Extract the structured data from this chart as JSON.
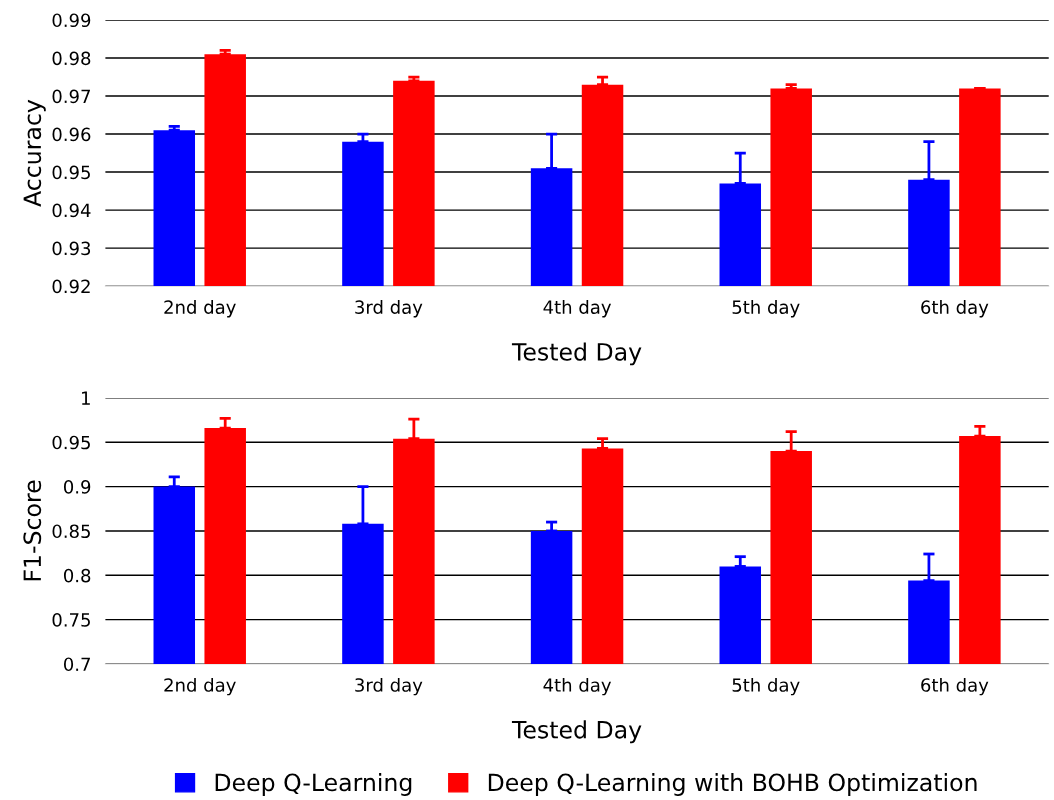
{
  "chart_data": [
    {
      "type": "bar",
      "categories": [
        "2nd day",
        "3rd day",
        "4th day",
        "5th day",
        "6th day"
      ],
      "xlabel": "Tested Day",
      "ylabel": "Accuracy",
      "ylim": [
        0.92,
        0.99
      ],
      "yticks": [
        0.92,
        0.93,
        0.94,
        0.95,
        0.96,
        0.97,
        0.98,
        0.99
      ],
      "grid": "y",
      "series": [
        {
          "color": "#0000ff",
          "values": [
            0.961,
            0.958,
            0.951,
            0.947,
            0.948
          ],
          "errors": [
            [
              0.961,
              0.962
            ],
            [
              0.958,
              0.96
            ],
            [
              0.951,
              0.96
            ],
            [
              0.947,
              0.955
            ],
            [
              0.948,
              0.958
            ]
          ]
        },
        {
          "color": "#ff0000",
          "values": [
            0.981,
            0.974,
            0.973,
            0.972,
            0.972
          ],
          "errors": [
            [
              0.981,
              0.982
            ],
            [
              0.974,
              0.975
            ],
            [
              0.973,
              0.975
            ],
            [
              0.972,
              0.973
            ],
            [
              0.972,
              0.972
            ]
          ]
        }
      ]
    },
    {
      "type": "bar",
      "categories": [
        "2nd day",
        "3rd day",
        "4th day",
        "5th day",
        "6th day"
      ],
      "xlabel": "Tested Day",
      "ylabel": "F1-Score",
      "ylim": [
        0.7,
        1
      ],
      "yticks": [
        0.7,
        0.75,
        0.8,
        0.85,
        0.9,
        0.95,
        1
      ],
      "grid": "y",
      "legend": "bottom",
      "series": [
        {
          "name": "Deep Q-Learning",
          "color": "#0000ff",
          "values": [
            0.9,
            0.858,
            0.85,
            0.81,
            0.794
          ],
          "errors": [
            [
              0.9,
              0.911
            ],
            [
              0.858,
              0.9
            ],
            [
              0.85,
              0.86
            ],
            [
              0.81,
              0.821
            ],
            [
              0.794,
              0.824
            ]
          ]
        },
        {
          "name": "Deep Q-Learning with BOHB Optimization",
          "color": "#ff0000",
          "values": [
            0.966,
            0.954,
            0.943,
            0.94,
            0.957
          ],
          "errors": [
            [
              0.966,
              0.977
            ],
            [
              0.954,
              0.976
            ],
            [
              0.943,
              0.954
            ],
            [
              0.94,
              0.962
            ],
            [
              0.957,
              0.968
            ]
          ]
        }
      ]
    }
  ]
}
